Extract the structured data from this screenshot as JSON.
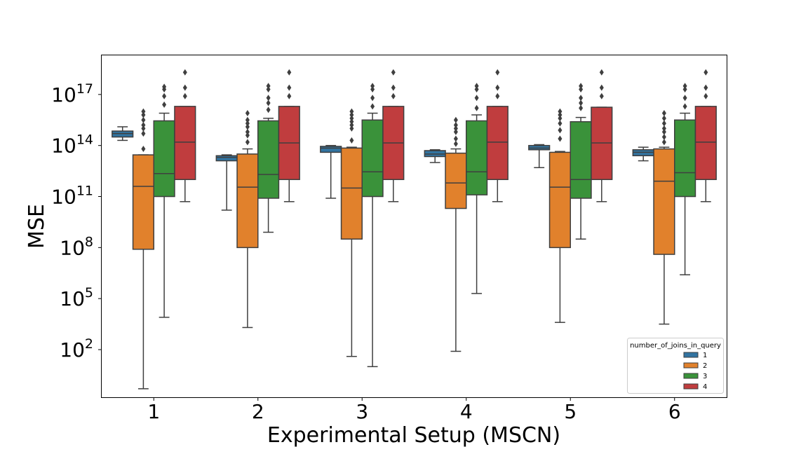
{
  "chart_data": {
    "type": "box",
    "title": "",
    "xlabel": "Experimental Setup (MSCN)",
    "ylabel": "MSE",
    "y_scale": "log10",
    "ylim_log10": [
      -0.8,
      19.3
    ],
    "y_ticks": [
      {
        "base": "10",
        "exp": "2"
      },
      {
        "base": "10",
        "exp": "5"
      },
      {
        "base": "10",
        "exp": "8"
      },
      {
        "base": "10",
        "exp": "11"
      },
      {
        "base": "10",
        "exp": "14"
      },
      {
        "base": "10",
        "exp": "17"
      }
    ],
    "categories": [
      "1",
      "2",
      "3",
      "4",
      "5",
      "6"
    ],
    "grid": false,
    "legend": {
      "title": "number_of_joins_in_query",
      "position": "lower-right",
      "entries": [
        "1",
        "2",
        "3",
        "4"
      ]
    },
    "series_colors": [
      "#3274a1",
      "#e1812c",
      "#3a923a",
      "#c03d3e"
    ],
    "note_values": "each box: [whisker_low, q1, median, q3, whisker_high] in log10(MSE); outliers in log10(MSE)",
    "series": [
      {
        "name": "1",
        "boxes": [
          {
            "category": "1",
            "stats": [
              14.3,
              14.5,
              14.7,
              14.85,
              15.1
            ],
            "outliers": []
          },
          {
            "category": "2",
            "stats": [
              10.2,
              13.1,
              13.3,
              13.4,
              13.45
            ],
            "outliers": []
          },
          {
            "category": "3",
            "stats": [
              10.9,
              13.6,
              13.85,
              13.95,
              14.0
            ],
            "outliers": []
          },
          {
            "category": "4",
            "stats": [
              13.0,
              13.35,
              13.5,
              13.7,
              13.75
            ],
            "outliers": []
          },
          {
            "category": "5",
            "stats": [
              12.7,
              13.75,
              13.85,
              14.0,
              14.05
            ],
            "outliers": []
          },
          {
            "category": "6",
            "stats": [
              13.1,
              13.4,
              13.6,
              13.75,
              13.9
            ],
            "outliers": []
          }
        ]
      },
      {
        "name": "2",
        "boxes": [
          {
            "category": "1",
            "stats": [
              -0.3,
              7.9,
              11.6,
              13.45,
              13.45
            ],
            "outliers": [
              13.8,
              14.7,
              15.0,
              15.2,
              15.5,
              15.8,
              16.0
            ]
          },
          {
            "category": "2",
            "stats": [
              3.3,
              8.0,
              11.55,
              13.5,
              13.8
            ],
            "outliers": [
              14.2,
              14.6,
              14.8,
              15.1,
              15.3,
              15.5,
              15.9
            ]
          },
          {
            "category": "3",
            "stats": [
              1.6,
              8.5,
              11.5,
              13.85,
              13.9
            ],
            "outliers": [
              14.3,
              15.0,
              15.2,
              15.4,
              15.6,
              15.8,
              16.0
            ]
          },
          {
            "category": "4",
            "stats": [
              1.9,
              10.3,
              11.8,
              13.55,
              13.8
            ],
            "outliers": [
              14.1,
              14.4,
              14.8,
              15.0,
              15.2,
              15.5
            ]
          },
          {
            "category": "5",
            "stats": [
              3.6,
              8.0,
              11.55,
              13.6,
              13.65
            ],
            "outliers": [
              14.4,
              14.9,
              15.3,
              15.6,
              15.8,
              16.0
            ]
          },
          {
            "category": "6",
            "stats": [
              3.5,
              7.6,
              11.9,
              13.8,
              13.9
            ],
            "outliers": [
              14.2,
              14.5,
              14.8,
              15.0,
              15.3,
              15.6,
              15.9
            ]
          }
        ]
      },
      {
        "name": "3",
        "boxes": [
          {
            "category": "1",
            "stats": [
              3.9,
              11.0,
              12.35,
              15.45,
              15.9
            ],
            "outliers": [
              16.4,
              16.9,
              17.3,
              17.45
            ]
          },
          {
            "category": "2",
            "stats": [
              8.9,
              10.9,
              12.3,
              15.45,
              15.6
            ],
            "outliers": [
              16.1,
              16.5,
              16.8,
              17.3,
              17.5
            ]
          },
          {
            "category": "3",
            "stats": [
              1.0,
              11.0,
              12.45,
              15.5,
              15.9
            ],
            "outliers": [
              16.3,
              16.8,
              17.3,
              17.5
            ]
          },
          {
            "category": "4",
            "stats": [
              5.3,
              11.1,
              12.45,
              15.45,
              15.8
            ],
            "outliers": [
              16.2,
              16.8,
              17.3,
              17.5
            ]
          },
          {
            "category": "5",
            "stats": [
              8.5,
              10.9,
              12.0,
              15.4,
              15.65
            ],
            "outliers": [
              16.2,
              16.5,
              16.8,
              17.3,
              17.5
            ]
          },
          {
            "category": "6",
            "stats": [
              6.4,
              11.0,
              12.4,
              15.5,
              15.9
            ],
            "outliers": [
              16.3,
              16.8,
              17.3,
              17.5
            ]
          }
        ]
      },
      {
        "name": "4",
        "boxes": [
          {
            "category": "1",
            "stats": [
              10.7,
              12.0,
              14.2,
              16.3,
              16.3
            ],
            "outliers": [
              16.9,
              17.4,
              18.3
            ]
          },
          {
            "category": "2",
            "stats": [
              10.7,
              12.0,
              14.15,
              16.3,
              16.3
            ],
            "outliers": [
              16.9,
              17.4,
              18.3
            ]
          },
          {
            "category": "3",
            "stats": [
              10.7,
              12.0,
              14.15,
              16.3,
              16.3
            ],
            "outliers": [
              16.9,
              17.4,
              18.3
            ]
          },
          {
            "category": "4",
            "stats": [
              10.7,
              12.0,
              14.2,
              16.3,
              16.3
            ],
            "outliers": [
              16.9,
              17.4,
              18.3
            ]
          },
          {
            "category": "5",
            "stats": [
              10.7,
              12.0,
              14.15,
              16.25,
              16.25
            ],
            "outliers": [
              16.9,
              17.4,
              18.3
            ]
          },
          {
            "category": "6",
            "stats": [
              10.7,
              12.0,
              14.2,
              16.3,
              16.3
            ],
            "outliers": [
              16.9,
              17.4,
              18.3
            ]
          }
        ]
      }
    ]
  }
}
